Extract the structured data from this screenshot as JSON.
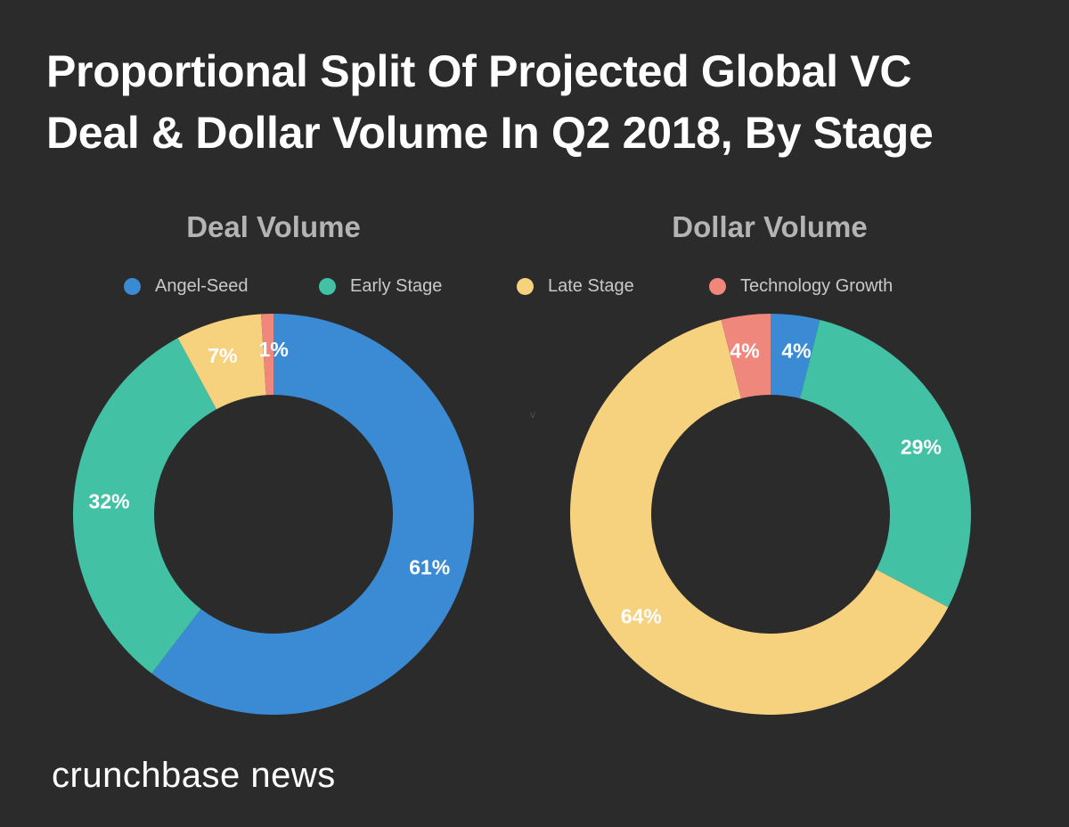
{
  "title_line1": "Proportional Split Of Projected Global VC",
  "title_line2": "Deal & Dollar Volume In Q2 2018, By Stage",
  "brand": "crunchbase news",
  "stray_mark": "v",
  "colors": {
    "background": "#2b2b2b",
    "angel_seed": "#3a8bd4",
    "early_stage": "#42c1a4",
    "late_stage": "#f6d17e",
    "technology_growth": "#f0877d"
  },
  "chart_data": [
    {
      "type": "pie",
      "variant": "donut",
      "title": "Deal Volume",
      "categories": [
        "Angel-Seed",
        "Early Stage",
        "Late Stage",
        "Technology Growth"
      ],
      "values": [
        61,
        32,
        7,
        1
      ],
      "labels": [
        "61%",
        "32%",
        "7%",
        "1%"
      ],
      "start_angle_deg": 0,
      "direction": "clockwise"
    },
    {
      "type": "pie",
      "variant": "donut",
      "title": "Dollar Volume",
      "categories": [
        "Angel-Seed",
        "Early Stage",
        "Late Stage",
        "Technology Growth"
      ],
      "values": [
        4,
        29,
        64,
        4
      ],
      "labels": [
        "4%",
        "29%",
        "64%",
        "4%"
      ],
      "start_angle_deg": 0,
      "direction": "clockwise"
    }
  ],
  "legend": [
    {
      "label": "Angel-Seed",
      "color": "#3a8bd4"
    },
    {
      "label": "Early Stage",
      "color": "#42c1a4"
    },
    {
      "label": "Late Stage",
      "color": "#f6d17e"
    },
    {
      "label": "Technology Growth",
      "color": "#f0877d"
    }
  ]
}
